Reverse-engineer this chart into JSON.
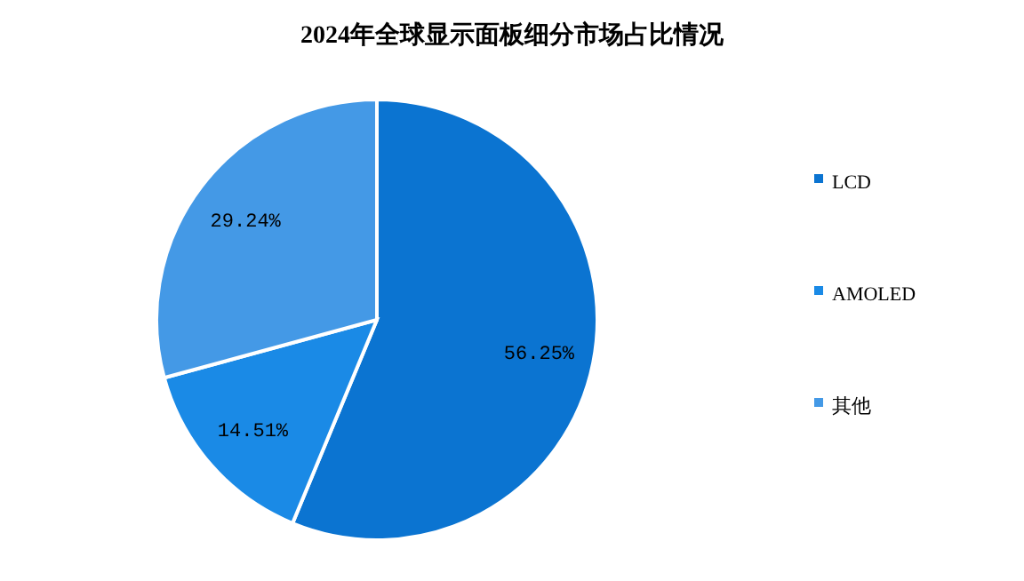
{
  "chart_data": {
    "type": "pie",
    "title": "2024年全球显示面板细分市场占比情况",
    "categories": [
      "LCD",
      "AMOLED",
      "其他"
    ],
    "values": [
      56.25,
      14.51,
      29.24
    ],
    "value_labels": [
      "56.25%",
      "14.51%",
      "29.24%"
    ],
    "colors": [
      "#0b74d1",
      "#1a8ae6",
      "#4499e6"
    ],
    "legend": "right"
  }
}
